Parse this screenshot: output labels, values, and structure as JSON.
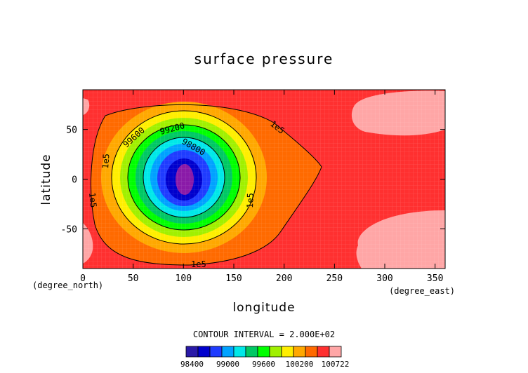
{
  "chart_data": {
    "type": "contour",
    "title": "surface pressure",
    "xlabel": "longitude",
    "ylabel": "latitude",
    "x_unit": "(degree_east)",
    "y_unit": "(degree_north)",
    "xlim": [
      0,
      360
    ],
    "ylim": [
      -90,
      90
    ],
    "x_ticks": [
      0,
      50,
      100,
      150,
      200,
      250,
      300,
      350
    ],
    "y_ticks": [
      -50,
      0,
      50
    ],
    "grid": true,
    "contour_interval_label": "CONTOUR INTERVAL = 2.000E+02",
    "contour_interval": 200,
    "low_center": {
      "lon": 100,
      "lat": 0,
      "value": 98300
    },
    "levels": [
      98400,
      98600,
      98800,
      99000,
      99200,
      99400,
      99600,
      99800,
      100000,
      100200,
      100400,
      100600
    ],
    "colorbar": {
      "colors": [
        "#2a1aa8",
        "#0000cd",
        "#1f3cff",
        "#00a2ff",
        "#00e8e8",
        "#00c864",
        "#00ff00",
        "#a0f000",
        "#ffee00",
        "#ffa800",
        "#ff6a00",
        "#ff3030",
        "#ffa6a6"
      ],
      "tick_labels": [
        "98400",
        "99000",
        "99600",
        "100200",
        "100722"
      ]
    },
    "contour_labels": [
      "1e5",
      "1e5",
      "1e5",
      "1e5",
      "1e5",
      "99600",
      "99200",
      "98800"
    ]
  }
}
